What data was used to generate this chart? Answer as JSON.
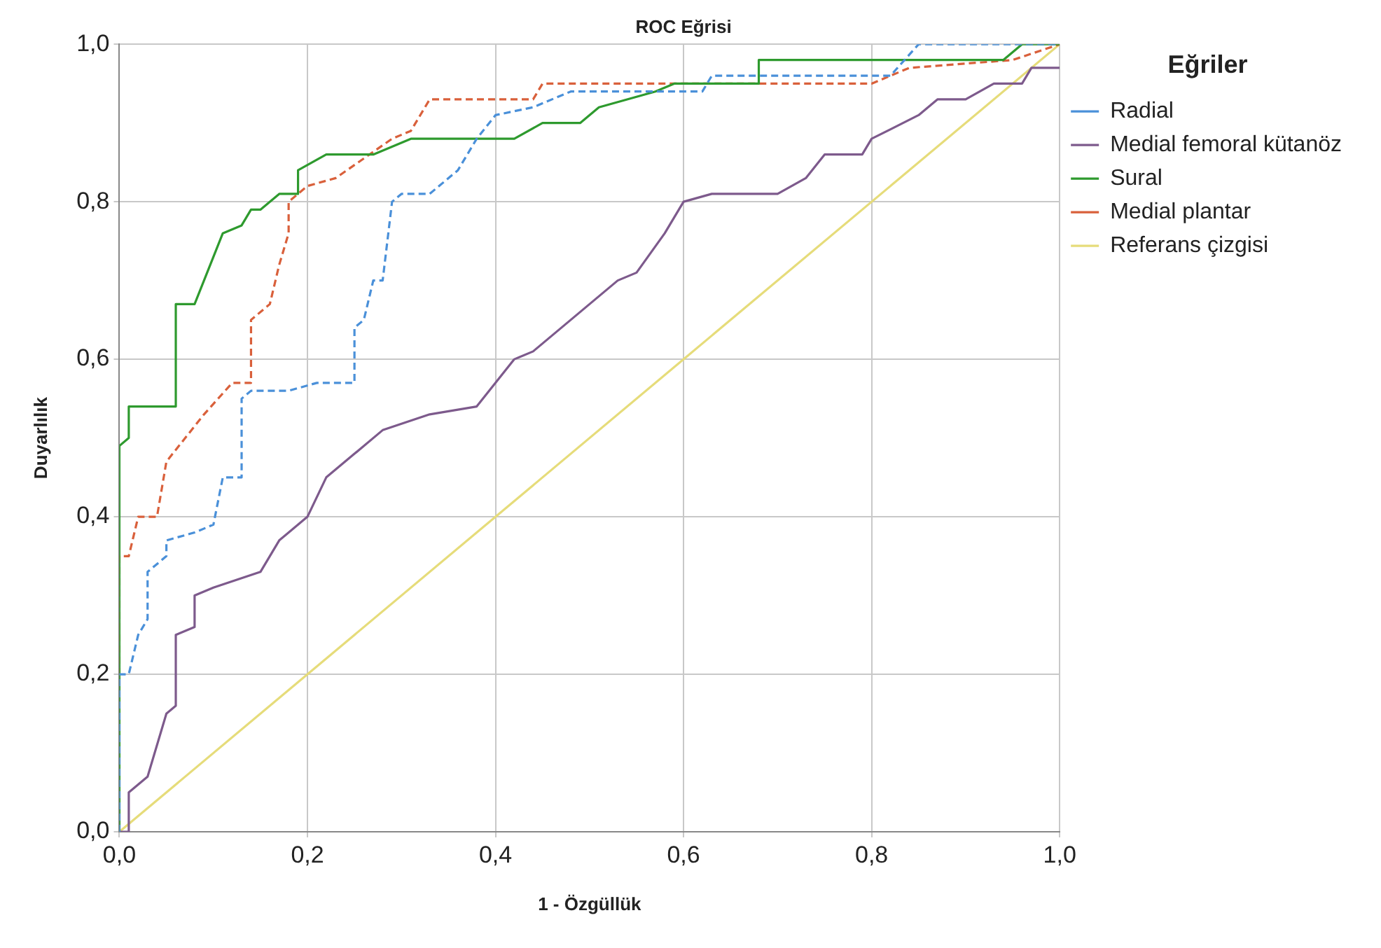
{
  "chart_data": {
    "type": "line",
    "title": "ROC Eğrisi",
    "xlabel": "1 - Özgüllük",
    "ylabel": "Duyarlılık",
    "legend_title": "Eğriler",
    "legend": "right",
    "grid": true,
    "marker": "none",
    "xlim": [
      0,
      1
    ],
    "ylim": [
      0,
      1
    ],
    "xticks": [
      {
        "value": 0,
        "label": "0,0"
      },
      {
        "value": 0.2,
        "label": "0,2"
      },
      {
        "value": 0.4,
        "label": "0,4"
      },
      {
        "value": 0.6,
        "label": "0,6"
      },
      {
        "value": 0.8,
        "label": "0,8"
      },
      {
        "value": 1,
        "label": "1,0"
      }
    ],
    "yticks": [
      {
        "value": 0,
        "label": "0,0"
      },
      {
        "value": 0.2,
        "label": "0,2"
      },
      {
        "value": 0.4,
        "label": "0,4"
      },
      {
        "value": 0.6,
        "label": "0,6"
      },
      {
        "value": 0.8,
        "label": "0,8"
      },
      {
        "value": 1,
        "label": "1,0"
      }
    ],
    "series": [
      {
        "name": "Radial",
        "color": "#4a90d9",
        "line_style": "dashed",
        "x": [
          0,
          0,
          0.01,
          0.02,
          0.03,
          0.03,
          0.05,
          0.05,
          0.08,
          0.1,
          0.11,
          0.13,
          0.13,
          0.14,
          0.18,
          0.21,
          0.25,
          0.25,
          0.26,
          0.27,
          0.28,
          0.29,
          0.3,
          0.33,
          0.36,
          0.38,
          0.4,
          0.44,
          0.48,
          0.62,
          0.63,
          0.82,
          0.85,
          1
        ],
        "values": [
          0,
          0.2,
          0.2,
          0.25,
          0.27,
          0.33,
          0.35,
          0.37,
          0.38,
          0.39,
          0.45,
          0.45,
          0.55,
          0.56,
          0.56,
          0.57,
          0.57,
          0.64,
          0.65,
          0.7,
          0.7,
          0.8,
          0.81,
          0.81,
          0.84,
          0.88,
          0.91,
          0.92,
          0.94,
          0.94,
          0.96,
          0.96,
          1,
          1
        ]
      },
      {
        "name": "Medial femoral kütanöz",
        "color": "#7d5a8c",
        "line_style": "solid",
        "x": [
          0,
          0.01,
          0.01,
          0.03,
          0.05,
          0.06,
          0.06,
          0.08,
          0.08,
          0.1,
          0.15,
          0.17,
          0.2,
          0.22,
          0.25,
          0.28,
          0.33,
          0.38,
          0.4,
          0.42,
          0.44,
          0.49,
          0.53,
          0.55,
          0.58,
          0.6,
          0.63,
          0.7,
          0.73,
          0.75,
          0.79,
          0.8,
          0.85,
          0.87,
          0.9,
          0.93,
          0.96,
          0.97,
          1
        ],
        "values": [
          0,
          0,
          0.05,
          0.07,
          0.15,
          0.16,
          0.25,
          0.26,
          0.3,
          0.31,
          0.33,
          0.37,
          0.4,
          0.45,
          0.48,
          0.51,
          0.53,
          0.54,
          0.57,
          0.6,
          0.61,
          0.66,
          0.7,
          0.71,
          0.76,
          0.8,
          0.81,
          0.81,
          0.83,
          0.86,
          0.86,
          0.88,
          0.91,
          0.93,
          0.93,
          0.95,
          0.95,
          0.97,
          0.97
        ]
      },
      {
        "name": "Sural",
        "color": "#2e9a2e",
        "line_style": "solid",
        "x": [
          0,
          0,
          0.01,
          0.01,
          0.06,
          0.06,
          0.08,
          0.09,
          0.11,
          0.13,
          0.14,
          0.15,
          0.17,
          0.19,
          0.19,
          0.22,
          0.27,
          0.31,
          0.42,
          0.45,
          0.49,
          0.51,
          0.54,
          0.57,
          0.59,
          0.68,
          0.68,
          0.94,
          0.96,
          1
        ],
        "values": [
          0,
          0.49,
          0.5,
          0.54,
          0.54,
          0.67,
          0.67,
          0.7,
          0.76,
          0.77,
          0.79,
          0.79,
          0.81,
          0.81,
          0.84,
          0.86,
          0.86,
          0.88,
          0.88,
          0.9,
          0.9,
          0.92,
          0.93,
          0.94,
          0.95,
          0.95,
          0.98,
          0.98,
          1,
          1
        ]
      },
      {
        "name": "Medial plantar",
        "color": "#d9603b",
        "line_style": "dashed",
        "x": [
          0,
          0,
          0.01,
          0.02,
          0.04,
          0.05,
          0.09,
          0.12,
          0.14,
          0.14,
          0.16,
          0.17,
          0.18,
          0.18,
          0.2,
          0.23,
          0.29,
          0.31,
          0.33,
          0.44,
          0.45,
          0.8,
          0.84,
          0.95,
          1
        ],
        "values": [
          0,
          0.35,
          0.35,
          0.4,
          0.4,
          0.47,
          0.53,
          0.57,
          0.57,
          0.65,
          0.67,
          0.72,
          0.76,
          0.8,
          0.82,
          0.83,
          0.88,
          0.89,
          0.93,
          0.93,
          0.95,
          0.95,
          0.97,
          0.98,
          1
        ]
      },
      {
        "name": "Referans çizgisi",
        "color": "#e6dc7a",
        "line_style": "solid",
        "x": [
          0,
          1
        ],
        "values": [
          0,
          1
        ]
      }
    ]
  }
}
